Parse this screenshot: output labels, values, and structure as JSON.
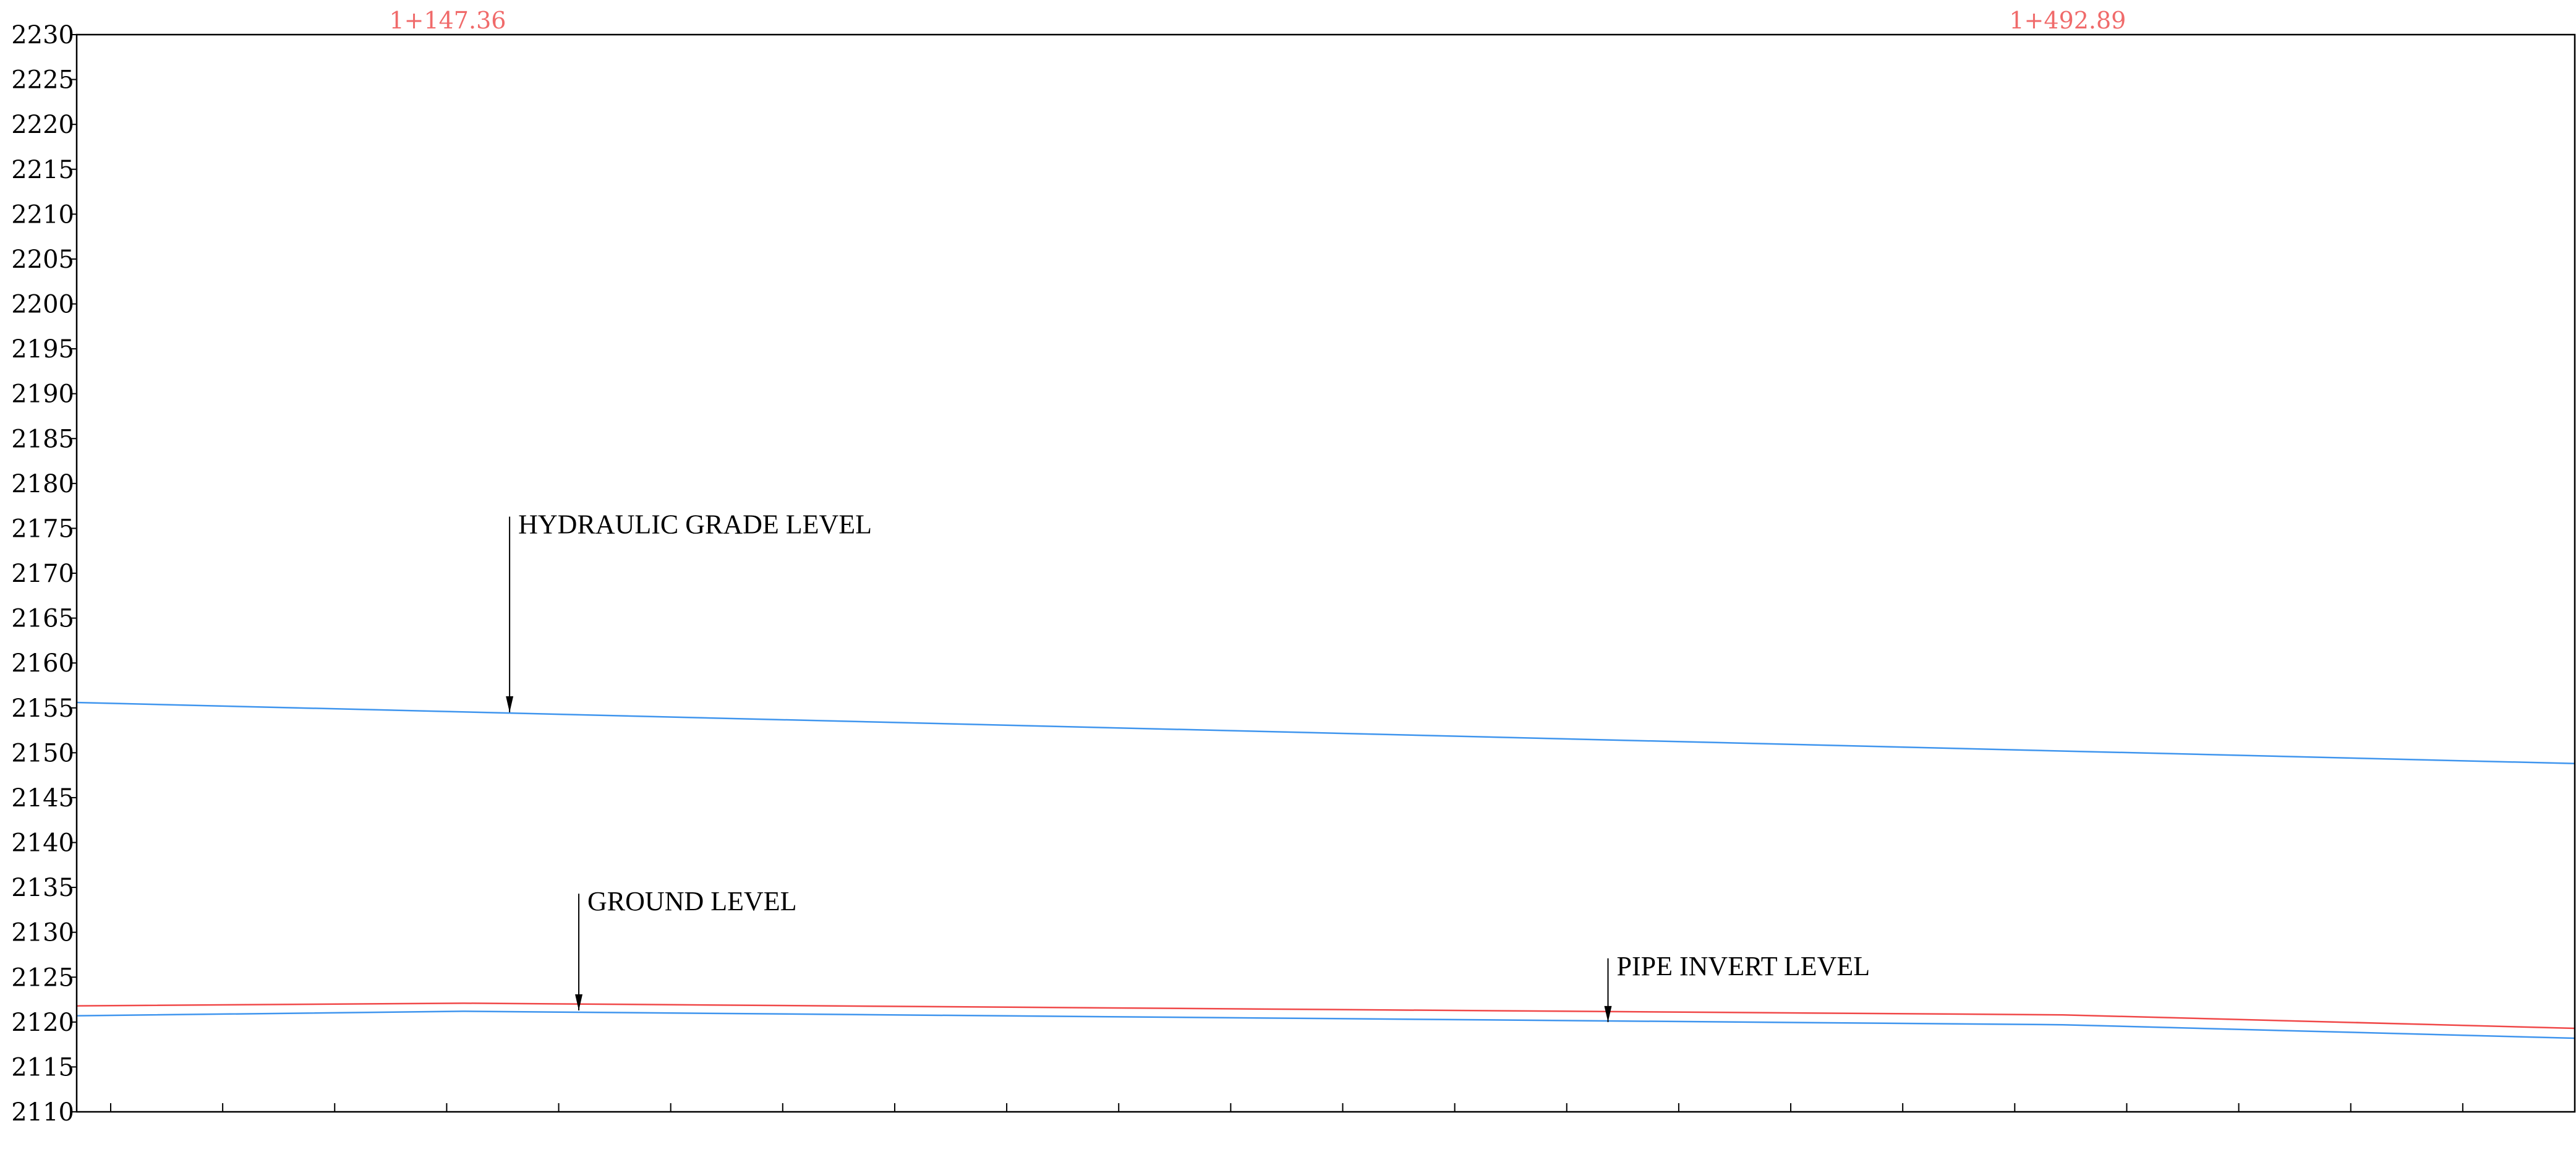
{
  "chart_data": {
    "type": "line",
    "title": "",
    "xlabel": "",
    "ylabel": "",
    "ylim": [
      2110,
      2230
    ],
    "y_ticks": [
      2110,
      2115,
      2120,
      2125,
      2130,
      2135,
      2140,
      2145,
      2150,
      2155,
      2160,
      2165,
      2170,
      2175,
      2180,
      2185,
      2190,
      2195,
      2200,
      2205,
      2210,
      2215,
      2220,
      2225,
      2230
    ],
    "x_tick_count": 23,
    "grid": false,
    "colors": {
      "ground": "#f04848",
      "hgl": "#3f95ee",
      "invert": "#3f95ee",
      "station_labels": "#f06a6a",
      "axes": "#000000"
    },
    "station_labels": [
      {
        "text": "1+147.36",
        "x_fraction": 0.1485
      },
      {
        "text": "1+492.89",
        "x_fraction": 0.797
      }
    ],
    "series": [
      {
        "key": "ground",
        "points": [
          [
            0,
            2121.8
          ],
          [
            0.155,
            2122.1
          ],
          [
            0.795,
            2120.8
          ],
          [
            1,
            2119.3
          ]
        ]
      },
      {
        "key": "hgl",
        "points": [
          [
            0,
            2155.6
          ],
          [
            1,
            2148.8
          ]
        ]
      },
      {
        "key": "invert",
        "points": [
          [
            0,
            2120.7
          ],
          [
            0.155,
            2121.2
          ],
          [
            0.795,
            2119.7
          ],
          [
            1,
            2118.2
          ]
        ]
      }
    ],
    "annotations": [
      {
        "key": "hgl",
        "text": "HYDRAULIC GRADE LEVEL",
        "x_fraction": 0.1733,
        "from_y": 2176.3,
        "to_y": 2154.5
      },
      {
        "key": "ground",
        "text": "GROUND LEVEL",
        "x_fraction": 0.201,
        "from_y": 2134.3,
        "to_y": 2121.3
      },
      {
        "key": "invert",
        "text": "PIPE INVERT LEVEL",
        "x_fraction": 0.613,
        "from_y": 2127.1,
        "to_y": 2120.0
      }
    ]
  }
}
